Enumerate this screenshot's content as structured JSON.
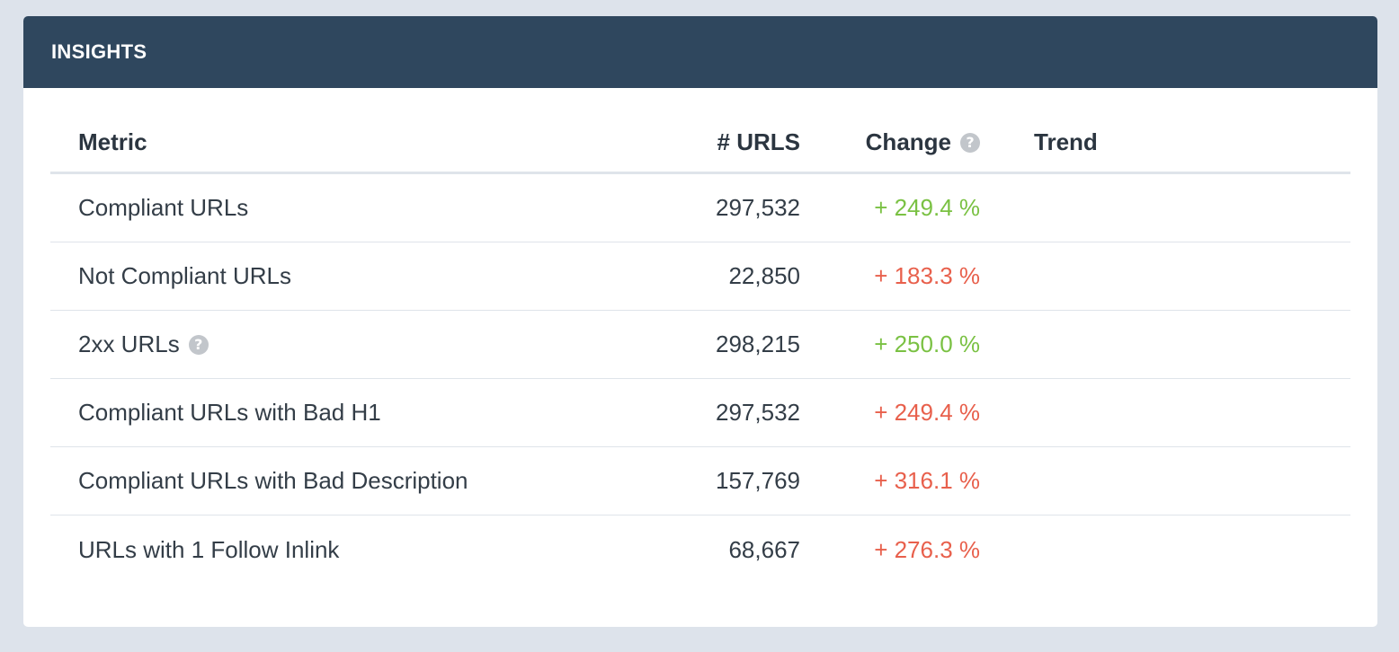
{
  "panel": {
    "title": "INSIGHTS"
  },
  "table": {
    "columns": {
      "metric": "Metric",
      "urls": "# URLS",
      "change": "Change",
      "trend": "Trend"
    },
    "rows": [
      {
        "metric": "Compliant URLs",
        "urls": "297,532",
        "change": "+ 249.4 %",
        "status": "positive"
      },
      {
        "metric": "Not Compliant URLs",
        "urls": "22,850",
        "change": "+ 183.3 %",
        "status": "negative"
      },
      {
        "metric": "2xx URLs",
        "urls": "298,215",
        "change": "+ 250.0 %",
        "status": "positive",
        "help": "?"
      },
      {
        "metric": "Compliant URLs with Bad H1",
        "urls": "297,532",
        "change": "+ 249.4 %",
        "status": "negative"
      },
      {
        "metric": "Compliant URLs with Bad Description",
        "urls": "157,769",
        "change": "+ 316.1 %",
        "status": "negative"
      },
      {
        "metric": "URLs with 1 Follow Inlink",
        "urls": "68,667",
        "change": "+ 276.3 %",
        "status": "negative"
      }
    ]
  },
  "icons": {
    "help_glyph": "?"
  },
  "colors": {
    "header_bg": "#2f475e",
    "positive": "#7ac143",
    "negative": "#e8604c",
    "page_bg": "#dde3eb"
  }
}
